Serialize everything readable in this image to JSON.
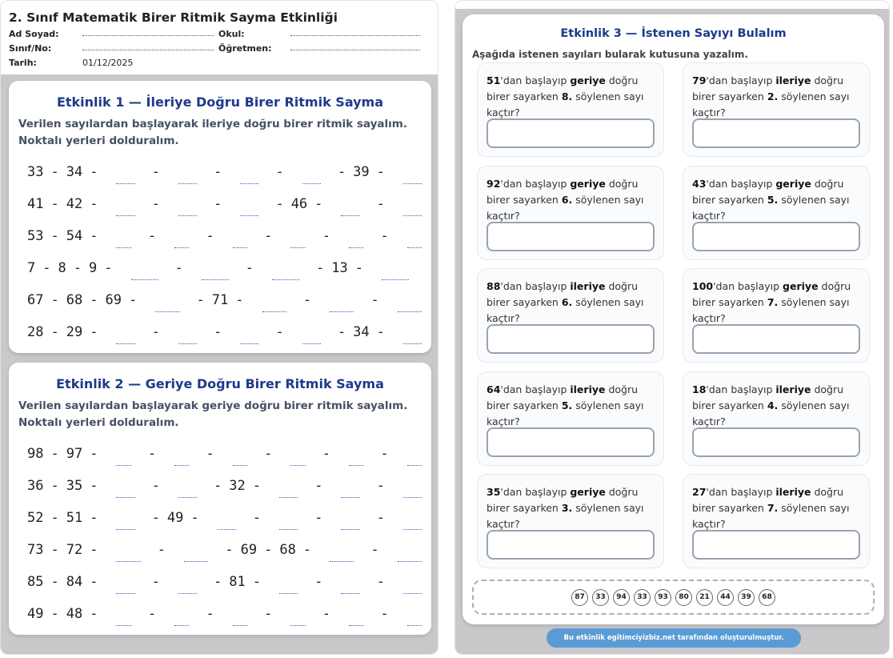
{
  "header": {
    "title": "2. Sınıf Matematik Birer Ritmik Sayma Etkinliği",
    "fields": {
      "name_label": "Ad Soyad:",
      "school_label": "Okul:",
      "class_label": "Sınıf/No:",
      "teacher_label": "Öğretmen:",
      "date_label": "Tarih:",
      "date_value": "01/12/2025"
    }
  },
  "activity1": {
    "title": "Etkinlik 1 — İleriye Doğru Birer Ritmik Sayma",
    "instruction": "Verilen sayılardan başlayarak ileriye doğru birer ritmik sayalım. Noktalı yerleri dolduralım.",
    "rows": [
      [
        "33",
        "34",
        "",
        "",
        "",
        "",
        "39",
        ""
      ],
      [
        "41",
        "42",
        "",
        "",
        "",
        "46",
        "",
        ""
      ],
      [
        "53",
        "54",
        "",
        "",
        "",
        "",
        "",
        ""
      ],
      [
        "7",
        "8",
        "9",
        "",
        "",
        "",
        "13",
        ""
      ],
      [
        "67",
        "68",
        "69",
        "",
        "71",
        "",
        "",
        ""
      ],
      [
        "28",
        "29",
        "",
        "",
        "",
        "",
        "34",
        ""
      ]
    ]
  },
  "activity2": {
    "title": "Etkinlik 2 — Geriye Doğru Birer Ritmik Sayma",
    "instruction": "Verilen sayılardan başlayarak geriye doğru birer ritmik sayalım. Noktalı yerleri dolduralım.",
    "rows": [
      [
        "98",
        "97",
        "",
        "",
        "",
        "",
        "",
        ""
      ],
      [
        "36",
        "35",
        "",
        "",
        "32",
        "",
        "",
        ""
      ],
      [
        "52",
        "51",
        "",
        "49",
        "",
        "",
        "",
        ""
      ],
      [
        "73",
        "72",
        "",
        "",
        "69",
        "68",
        "",
        ""
      ],
      [
        "85",
        "84",
        "",
        "",
        "81",
        "",
        "",
        ""
      ],
      [
        "49",
        "48",
        "",
        "",
        "",
        "",
        "",
        ""
      ]
    ]
  },
  "activity3": {
    "title": "Etkinlik 3 — İstenen Sayıyı Bulalım",
    "instruction": "Aşağıda istenen sayıları bularak kutusuna yazalım.",
    "questions": [
      {
        "start": "51",
        "direction": "geriye",
        "order": "8."
      },
      {
        "start": "79",
        "direction": "ileriye",
        "order": "2."
      },
      {
        "start": "92",
        "direction": "geriye",
        "order": "6."
      },
      {
        "start": "43",
        "direction": "geriye",
        "order": "5."
      },
      {
        "start": "88",
        "direction": "ileriye",
        "order": "6."
      },
      {
        "start": "100",
        "direction": "geriye",
        "order": "7."
      },
      {
        "start": "64",
        "direction": "ileriye",
        "order": "5."
      },
      {
        "start": "18",
        "direction": "ileriye",
        "order": "4."
      },
      {
        "start": "35",
        "direction": "geriye",
        "order": "3."
      },
      {
        "start": "27",
        "direction": "ileriye",
        "order": "7."
      }
    ],
    "q_text": {
      "after_start": "'dan başlayıp ",
      "after_dir": " doğru birer sayarken ",
      "after_order": " söylenen sayı kaçtır?"
    },
    "answer_bank": [
      "87",
      "33",
      "94",
      "33",
      "93",
      "80",
      "21",
      "44",
      "39",
      "68"
    ]
  },
  "footer": "Bu etkinlik egitimciyizbiz.net tarafından oluşturulmuştur.",
  "colors": {
    "title_blue": "#1e3a8a",
    "footer_blue": "#5b9bd5"
  }
}
